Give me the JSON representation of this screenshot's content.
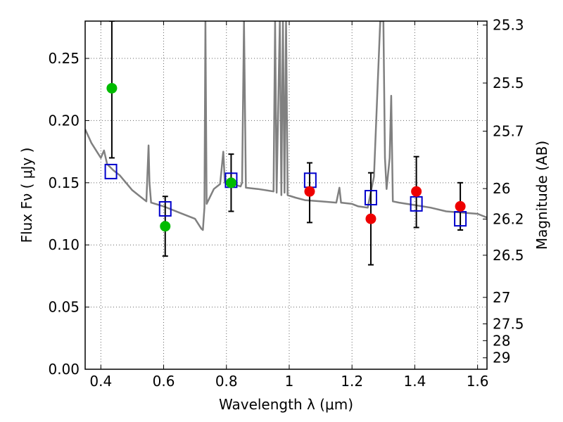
{
  "chart_data": {
    "type": "scatter",
    "xlabel": "Wavelength  λ (μm)",
    "ylabel": "Flux  Fν  ( μJy )",
    "ylabel_right": "Magnitude (AB)",
    "xlim": [
      0.35,
      1.63
    ],
    "ylim": [
      0.0,
      0.28
    ],
    "grid": true,
    "x_ticks": [
      0.4,
      0.6,
      0.8,
      1.0,
      1.2,
      1.4,
      1.6
    ],
    "x_tick_labels": [
      "0.4",
      "0.6",
      "0.8",
      "1",
      "1.2",
      "1.4",
      "1.6"
    ],
    "y_ticks": [
      0.0,
      0.05,
      0.1,
      0.15,
      0.2,
      0.25
    ],
    "y_tick_labels": [
      "0.00",
      "0.05",
      "0.10",
      "0.15",
      "0.20",
      "0.25"
    ],
    "right_ticks": [
      {
        "label": "25.3",
        "flux": 0.2768
      },
      {
        "label": "25.5",
        "flux": 0.2302
      },
      {
        "label": "25.7",
        "flux": 0.1915
      },
      {
        "label": "26",
        "flux": 0.1453
      },
      {
        "label": "26.2",
        "flux": 0.1208
      },
      {
        "label": "26.5",
        "flux": 0.0917
      },
      {
        "label": "27",
        "flux": 0.0578
      },
      {
        "label": "27.5",
        "flux": 0.0365
      },
      {
        "label": "28",
        "flux": 0.023
      },
      {
        "label": "29",
        "flux": 0.0092
      }
    ],
    "series": [
      {
        "kind": "model-spectrum",
        "color": "#808080",
        "points": [
          [
            0.35,
            0.193
          ],
          [
            0.37,
            0.182
          ],
          [
            0.39,
            0.174
          ],
          [
            0.4,
            0.17
          ],
          [
            0.41,
            0.176
          ],
          [
            0.42,
            0.165
          ],
          [
            0.44,
            0.16
          ],
          [
            0.46,
            0.156
          ],
          [
            0.48,
            0.15
          ],
          [
            0.5,
            0.144
          ],
          [
            0.52,
            0.14
          ],
          [
            0.545,
            0.135
          ],
          [
            0.552,
            0.18
          ],
          [
            0.555,
            0.15
          ],
          [
            0.56,
            0.134
          ],
          [
            0.6,
            0.131
          ],
          [
            0.65,
            0.126
          ],
          [
            0.7,
            0.121
          ],
          [
            0.72,
            0.113
          ],
          [
            0.725,
            0.112
          ],
          [
            0.73,
            0.13
          ],
          [
            0.733,
            0.28
          ],
          [
            0.737,
            0.133
          ],
          [
            0.76,
            0.145
          ],
          [
            0.78,
            0.149
          ],
          [
            0.79,
            0.175
          ],
          [
            0.795,
            0.15
          ],
          [
            0.82,
            0.149
          ],
          [
            0.845,
            0.147
          ],
          [
            0.85,
            0.15
          ],
          [
            0.856,
            0.28
          ],
          [
            0.862,
            0.146
          ],
          [
            0.9,
            0.145
          ],
          [
            0.95,
            0.143
          ],
          [
            0.955,
            0.28
          ],
          [
            0.96,
            0.142
          ],
          [
            0.97,
            0.28
          ],
          [
            0.975,
            0.14
          ],
          [
            0.98,
            0.28
          ],
          [
            0.985,
            0.142
          ],
          [
            0.99,
            0.28
          ],
          [
            0.995,
            0.14
          ],
          [
            1.02,
            0.138
          ],
          [
            1.05,
            0.136
          ],
          [
            1.1,
            0.135
          ],
          [
            1.15,
            0.134
          ],
          [
            1.16,
            0.146
          ],
          [
            1.165,
            0.134
          ],
          [
            1.2,
            0.133
          ],
          [
            1.22,
            0.131
          ],
          [
            1.25,
            0.13
          ],
          [
            1.27,
            0.155
          ],
          [
            1.29,
            0.28
          ],
          [
            1.3,
            0.28
          ],
          [
            1.305,
            0.17
          ],
          [
            1.31,
            0.145
          ],
          [
            1.32,
            0.17
          ],
          [
            1.325,
            0.22
          ],
          [
            1.33,
            0.135
          ],
          [
            1.35,
            0.134
          ],
          [
            1.4,
            0.132
          ],
          [
            1.45,
            0.13
          ],
          [
            1.5,
            0.127
          ],
          [
            1.55,
            0.126
          ],
          [
            1.6,
            0.125
          ],
          [
            1.63,
            0.122
          ]
        ]
      },
      {
        "kind": "observed-green",
        "color": "#00bb00",
        "points": [
          {
            "x": 0.435,
            "y": 0.226,
            "err_low": 0.17,
            "err_high": 0.28
          },
          {
            "x": 0.605,
            "y": 0.115,
            "err_low": 0.091,
            "err_high": 0.139
          },
          {
            "x": 0.815,
            "y": 0.15,
            "err_low": 0.127,
            "err_high": 0.173
          }
        ]
      },
      {
        "kind": "observed-red",
        "color": "#ee0000",
        "points": [
          {
            "x": 1.065,
            "y": 0.143,
            "err_low": 0.118,
            "err_high": 0.166
          },
          {
            "x": 1.26,
            "y": 0.121,
            "err_low": 0.084,
            "err_high": 0.158
          },
          {
            "x": 1.405,
            "y": 0.143,
            "err_low": 0.114,
            "err_high": 0.171
          },
          {
            "x": 1.545,
            "y": 0.131,
            "err_low": 0.112,
            "err_high": 0.15
          }
        ]
      },
      {
        "kind": "model-bandpass",
        "color": "#0000cc",
        "points": [
          {
            "x": 0.432,
            "y": 0.159
          },
          {
            "x": 0.605,
            "y": 0.129
          },
          {
            "x": 0.815,
            "y": 0.152
          },
          {
            "x": 1.067,
            "y": 0.152
          },
          {
            "x": 1.26,
            "y": 0.138
          },
          {
            "x": 1.405,
            "y": 0.133
          },
          {
            "x": 1.545,
            "y": 0.121
          }
        ]
      }
    ]
  }
}
